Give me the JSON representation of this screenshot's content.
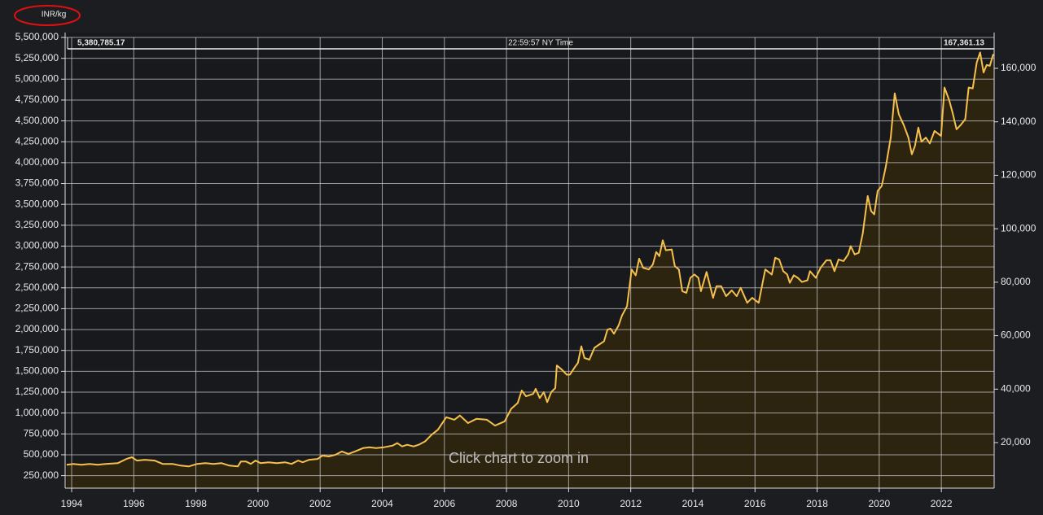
{
  "chart_data": {
    "type": "area",
    "y_label": "INR/kg",
    "annotations": [
      "5,380,785.17",
      "22:59:57 NY Time",
      "167,361.13",
      "Click chart to zoom in"
    ],
    "color": "#f6c04c",
    "fill": "#2d2410",
    "grid": true,
    "xlim": [
      1993.79,
      2023.7
    ],
    "xticks": [
      1994,
      1996,
      1998,
      2000,
      2002,
      2004,
      2006,
      2008,
      2010,
      2012,
      2014,
      2016,
      2018,
      2020,
      2022
    ],
    "ylim": [
      100000,
      5500000
    ],
    "yticks": [
      {
        "value": 250000,
        "label": "250,000"
      },
      {
        "value": 500000,
        "label": "500,000"
      },
      {
        "value": 750000,
        "label": "750,000"
      },
      {
        "value": 1000000,
        "label": "1,000,000"
      },
      {
        "value": 1250000,
        "label": "1,250,000"
      },
      {
        "value": 1500000,
        "label": "1,500,000"
      },
      {
        "value": 1750000,
        "label": "1,750,000"
      },
      {
        "value": 2000000,
        "label": "2,000,000"
      },
      {
        "value": 2250000,
        "label": "2,250,000"
      },
      {
        "value": 2500000,
        "label": "2,500,000"
      },
      {
        "value": 2750000,
        "label": "2,750,000"
      },
      {
        "value": 3000000,
        "label": "3,000,000"
      },
      {
        "value": 3250000,
        "label": "3,250,000"
      },
      {
        "value": 3500000,
        "label": "3,500,000"
      },
      {
        "value": 3750000,
        "label": "3,750,000"
      },
      {
        "value": 4000000,
        "label": "4,000,000"
      },
      {
        "value": 4250000,
        "label": "4,250,000"
      },
      {
        "value": 4500000,
        "label": "4,500,000"
      },
      {
        "value": 4750000,
        "label": "4,750,000"
      },
      {
        "value": 5000000,
        "label": "5,000,000"
      },
      {
        "value": 5250000,
        "label": "5,250,000"
      },
      {
        "value": 5500000,
        "label": "5,500,000"
      }
    ],
    "y2lim": [
      2957,
      171565
    ],
    "y2ticks": [
      {
        "value": 20000,
        "label": "20,000"
      },
      {
        "value": 40000,
        "label": "40,000"
      },
      {
        "value": 60000,
        "label": "60,000"
      },
      {
        "value": 80000,
        "label": "80,000"
      },
      {
        "value": 100000,
        "label": "100,000"
      },
      {
        "value": 120000,
        "label": "120,000"
      },
      {
        "value": 140000,
        "label": "140,000"
      },
      {
        "value": 160000,
        "label": "160,000"
      }
    ],
    "x": [
      1993.84,
      1994.05,
      1994.31,
      1994.58,
      1994.84,
      1995.1,
      1995.49,
      1995.76,
      1995.94,
      1996.1,
      1996.36,
      1996.67,
      1996.93,
      1997.25,
      1997.51,
      1997.77,
      1998.04,
      1998.3,
      1998.56,
      1998.82,
      1999.08,
      1999.35,
      1999.45,
      1999.61,
      1999.77,
      1999.92,
      2000.08,
      2000.34,
      2000.61,
      2000.87,
      2001.08,
      2001.29,
      2001.44,
      2001.65,
      2001.92,
      2002.07,
      2002.28,
      2002.49,
      2002.7,
      2002.91,
      2003.12,
      2003.38,
      2003.59,
      2003.8,
      2004.06,
      2004.33,
      2004.48,
      2004.64,
      2004.8,
      2005.01,
      2005.17,
      2005.38,
      2005.59,
      2005.79,
      2006.06,
      2006.32,
      2006.5,
      2006.76,
      2007.03,
      2007.37,
      2007.63,
      2007.94,
      2008.15,
      2008.36,
      2008.49,
      2008.63,
      2008.86,
      2008.94,
      2009.07,
      2009.2,
      2009.31,
      2009.44,
      2009.57,
      2009.62,
      2009.78,
      2009.94,
      2010.04,
      2010.2,
      2010.3,
      2010.41,
      2010.51,
      2010.67,
      2010.83,
      2010.98,
      2011.14,
      2011.25,
      2011.35,
      2011.46,
      2011.61,
      2011.72,
      2011.88,
      2012.03,
      2012.16,
      2012.27,
      2012.4,
      2012.58,
      2012.71,
      2012.82,
      2012.92,
      2013.03,
      2013.13,
      2013.32,
      2013.42,
      2013.55,
      2013.66,
      2013.79,
      2013.92,
      2014.05,
      2014.18,
      2014.26,
      2014.44,
      2014.65,
      2014.76,
      2014.91,
      2015.07,
      2015.25,
      2015.41,
      2015.54,
      2015.75,
      2015.91,
      2016.12,
      2016.25,
      2016.33,
      2016.54,
      2016.65,
      2016.78,
      2016.91,
      2017.04,
      2017.12,
      2017.25,
      2017.38,
      2017.51,
      2017.69,
      2017.77,
      2017.96,
      2018.11,
      2018.3,
      2018.43,
      2018.56,
      2018.69,
      2018.85,
      2019.0,
      2019.08,
      2019.21,
      2019.34,
      2019.47,
      2019.63,
      2019.74,
      2019.84,
      2019.95,
      2020.08,
      2020.21,
      2020.37,
      2020.5,
      2020.63,
      2020.79,
      2020.94,
      2021.05,
      2021.15,
      2021.26,
      2021.36,
      2021.5,
      2021.63,
      2021.78,
      2021.99,
      2022.1,
      2022.25,
      2022.36,
      2022.49,
      2022.62,
      2022.77,
      2022.88,
      2023.01,
      2023.14,
      2023.25,
      2023.36,
      2023.46,
      2023.56,
      2023.67
    ],
    "values": [
      380000,
      390000,
      380000,
      390000,
      380000,
      390000,
      400000,
      450000,
      470000,
      430000,
      440000,
      430000,
      390000,
      390000,
      370000,
      360000,
      390000,
      400000,
      390000,
      400000,
      370000,
      360000,
      420000,
      420000,
      390000,
      430000,
      400000,
      410000,
      400000,
      410000,
      390000,
      430000,
      410000,
      440000,
      450000,
      490000,
      480000,
      500000,
      540000,
      510000,
      540000,
      580000,
      590000,
      580000,
      590000,
      610000,
      640000,
      600000,
      620000,
      600000,
      620000,
      660000,
      740000,
      800000,
      950000,
      920000,
      970000,
      880000,
      930000,
      920000,
      850000,
      900000,
      1050000,
      1120000,
      1270000,
      1200000,
      1230000,
      1290000,
      1180000,
      1250000,
      1130000,
      1250000,
      1300000,
      1570000,
      1520000,
      1460000,
      1460000,
      1550000,
      1600000,
      1800000,
      1660000,
      1640000,
      1780000,
      1820000,
      1860000,
      2000000,
      2010000,
      1950000,
      2050000,
      2170000,
      2280000,
      2720000,
      2650000,
      2850000,
      2740000,
      2720000,
      2780000,
      2930000,
      2880000,
      3070000,
      2950000,
      2960000,
      2760000,
      2720000,
      2460000,
      2440000,
      2620000,
      2660000,
      2620000,
      2460000,
      2690000,
      2380000,
      2520000,
      2520000,
      2400000,
      2470000,
      2400000,
      2500000,
      2320000,
      2380000,
      2320000,
      2570000,
      2720000,
      2660000,
      2860000,
      2840000,
      2700000,
      2660000,
      2560000,
      2650000,
      2620000,
      2570000,
      2590000,
      2700000,
      2620000,
      2740000,
      2830000,
      2830000,
      2700000,
      2840000,
      2820000,
      2900000,
      3000000,
      2900000,
      2920000,
      3150000,
      3600000,
      3420000,
      3380000,
      3660000,
      3720000,
      3950000,
      4300000,
      4830000,
      4580000,
      4450000,
      4300000,
      4100000,
      4200000,
      4420000,
      4250000,
      4300000,
      4230000,
      4380000,
      4320000,
      4900000,
      4750000,
      4600000,
      4400000,
      4450000,
      4520000,
      4900000,
      4890000,
      5200000,
      5320000,
      5080000,
      5170000,
      5160000,
      5300000
    ]
  }
}
